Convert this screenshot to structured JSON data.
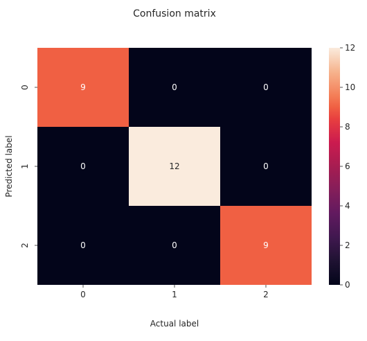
{
  "chart_data": {
    "type": "heatmap",
    "title": "Confusion matrix",
    "xlabel": "Actual label",
    "ylabel": "Predicted label",
    "x_categories": [
      "0",
      "1",
      "2"
    ],
    "y_categories": [
      "0",
      "1",
      "2"
    ],
    "values": [
      [
        9,
        0,
        0
      ],
      [
        0,
        12,
        0
      ],
      [
        0,
        0,
        9
      ]
    ],
    "colorbar": {
      "min": 0,
      "max": 12,
      "ticks": [
        0,
        2,
        4,
        6,
        8,
        10,
        12
      ]
    },
    "colormap": "rocket",
    "annotation_colors": {
      "on_dark": "#ffffff",
      "on_light": "#262626"
    }
  }
}
